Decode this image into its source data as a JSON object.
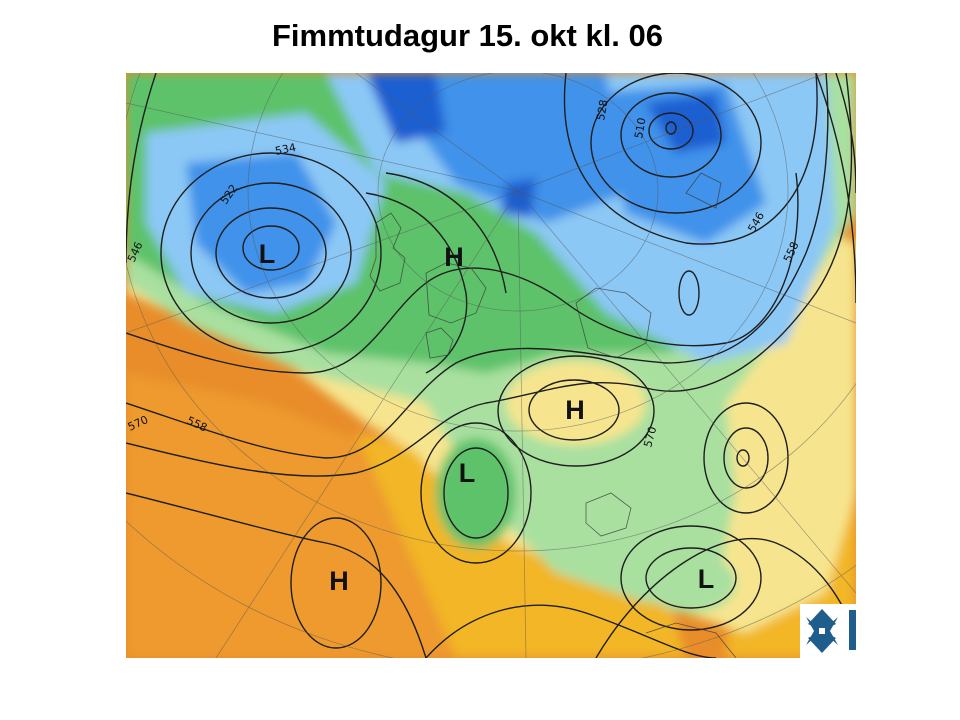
{
  "title": "Fimmtudagur 15. okt kl. 06",
  "pressure_systems": [
    "L",
    "H",
    "H",
    "L",
    "L",
    "H",
    "L"
  ],
  "contour_labels": [
    "534",
    "522",
    "528",
    "510",
    "546",
    "558",
    "546",
    "558",
    "570",
    "570"
  ],
  "logo": {
    "name": "vedurstofa-logo"
  },
  "colors": {
    "deep_blue": "#1f5fd1",
    "blue": "#3f92ea",
    "light_blue": "#8cc8f5",
    "green": "#5dc26a",
    "light_green": "#a9e0a0",
    "yellow": "#f6e58e",
    "gold": "#f2b628",
    "orange": "#e88d2a",
    "red_orange": "#cf5a1c"
  }
}
